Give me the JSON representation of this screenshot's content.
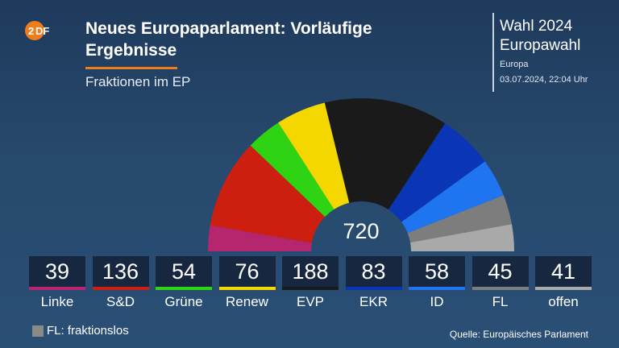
{
  "header": {
    "logo_text": "2DF",
    "title": "Neues Europaparlament: Vorläufige Ergebnisse",
    "subtitle": "Fraktionen im EP"
  },
  "info": {
    "title_line1": "Wahl 2024",
    "title_line2": "Europawahl",
    "region": "Europa",
    "date": "03.07.2024, 22:04 Uhr"
  },
  "chart_data": {
    "type": "parliament",
    "total": 720,
    "total_label": "720",
    "parties": [
      {
        "name": "Linke",
        "seats": 39,
        "color": "#b5266e"
      },
      {
        "name": "S&D",
        "seats": 136,
        "color": "#cc1f0f"
      },
      {
        "name": "Grüne",
        "seats": 54,
        "color": "#2ed414"
      },
      {
        "name": "Renew",
        "seats": 76,
        "color": "#f5d700"
      },
      {
        "name": "EVP",
        "seats": 188,
        "color": "#1a1a1a"
      },
      {
        "name": "EKR",
        "seats": 83,
        "color": "#0a35b5"
      },
      {
        "name": "ID",
        "seats": 58,
        "color": "#1f74f0"
      },
      {
        "name": "FL",
        "seats": 45,
        "color": "#7d7d7d"
      },
      {
        "name": "offen",
        "seats": 41,
        "color": "#a9a9a9"
      }
    ]
  },
  "footer": {
    "legend_text": "FL: fraktionslos",
    "source": "Quelle: Europäisches Parlament"
  }
}
